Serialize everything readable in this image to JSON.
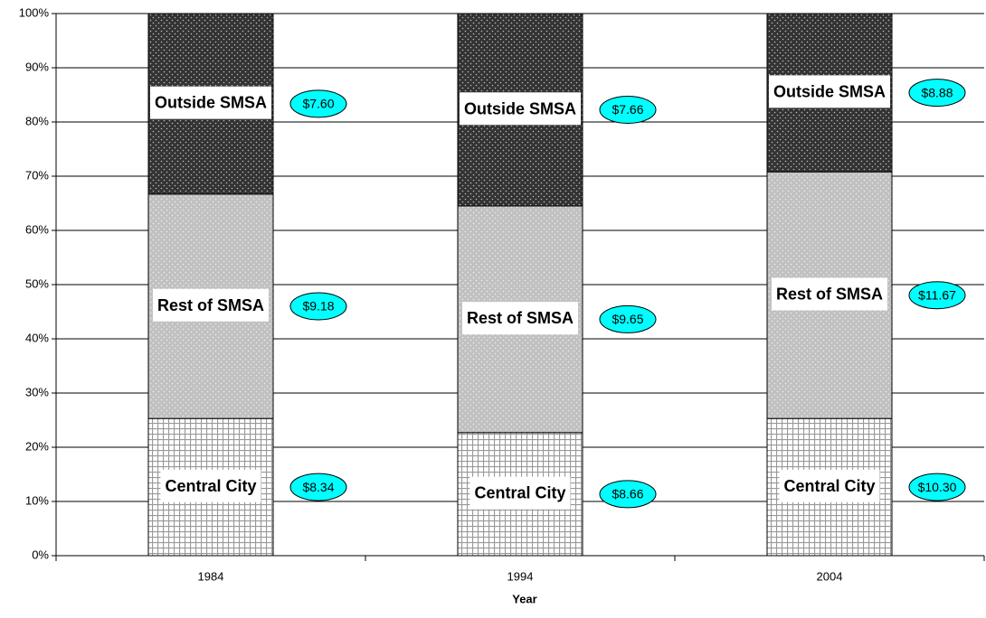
{
  "chart_data": {
    "type": "stacked_bar_100",
    "x_label": "Year",
    "categories": [
      "1984",
      "1994",
      "2004"
    ],
    "series": [
      {
        "name": "Central City",
        "color": "#ffffff",
        "values": [
          25.3,
          22.7,
          25.3
        ],
        "annotations": [
          "$8.34",
          "$8.66",
          "$10.30"
        ]
      },
      {
        "name": "Rest of SMSA",
        "color": "#c0c0c0",
        "values": [
          41.4,
          41.8,
          45.5
        ],
        "annotations": [
          "$9.18",
          "$9.65",
          "$11.67"
        ]
      },
      {
        "name": "Outside SMSA",
        "color": "#333333",
        "values": [
          33.3,
          35.5,
          29.2
        ],
        "annotations": [
          "$7.60",
          "$7.66",
          "$8.88"
        ]
      }
    ],
    "annotation_color": "#00ffff",
    "ylim": [
      0,
      100
    ],
    "yticks": [
      {
        "value": 0,
        "label": "0%"
      },
      {
        "value": 10,
        "label": "10%"
      },
      {
        "value": 20,
        "label": "20%"
      },
      {
        "value": 30,
        "label": "30%"
      },
      {
        "value": 40,
        "label": "40%"
      },
      {
        "value": 50,
        "label": "50%"
      },
      {
        "value": 60,
        "label": "60%"
      },
      {
        "value": 70,
        "label": "70%"
      },
      {
        "value": 80,
        "label": "80%"
      },
      {
        "value": 90,
        "label": "90%"
      },
      {
        "value": 100,
        "label": "100%"
      }
    ],
    "grid": true
  }
}
